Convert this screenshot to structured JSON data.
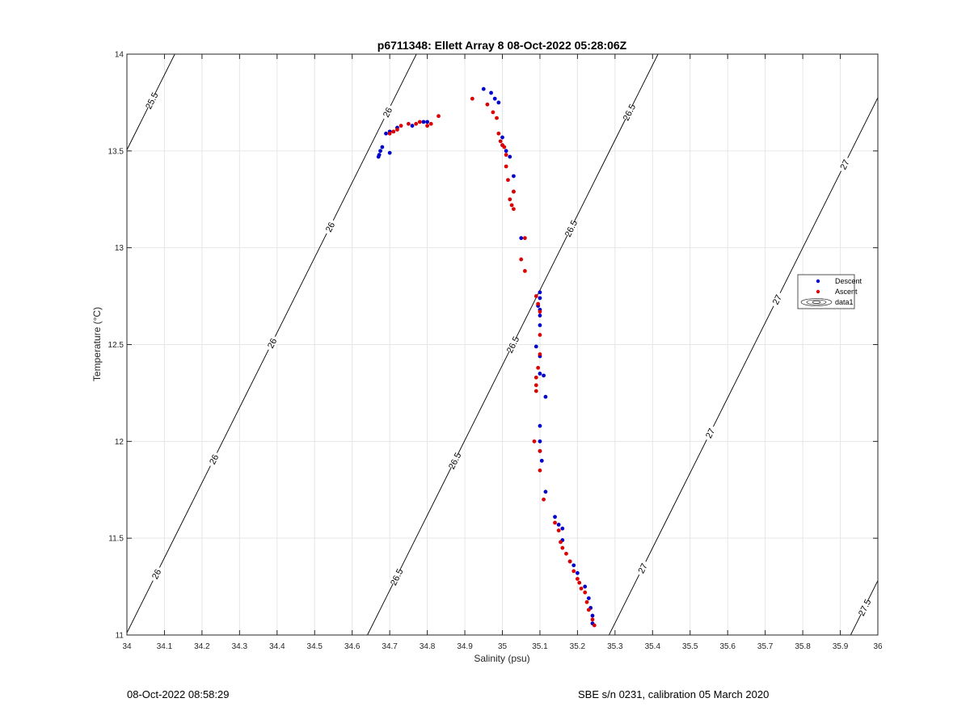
{
  "chart_data": {
    "type": "scatter",
    "title": "p6711348: Ellett Array 8 08-Oct-2022 05:28:06Z",
    "xlabel": "Salinity (psu)",
    "ylabel": "Temperature (°C)",
    "xlim": [
      34,
      36
    ],
    "ylim": [
      11,
      14
    ],
    "xticks": [
      "34",
      "34.1",
      "34.2",
      "34.3",
      "34.4",
      "34.5",
      "34.6",
      "34.7",
      "34.8",
      "34.9",
      "35",
      "35.1",
      "35.2",
      "35.3",
      "35.4",
      "35.5",
      "35.6",
      "35.7",
      "35.8",
      "35.9",
      "36"
    ],
    "yticks": [
      "11",
      "11.5",
      "12",
      "12.5",
      "13",
      "13.5",
      "14"
    ],
    "grid": true,
    "legend_position": "right",
    "legend": [
      "Descent",
      "Ascent",
      "data1"
    ],
    "colors": {
      "descent": "#0000cc",
      "ascent": "#dd0000",
      "axis": "#262626",
      "grid": "#e6e6e6",
      "contour": "#000000"
    },
    "series": [
      {
        "name": "Descent",
        "x": [
          34.67,
          34.672,
          34.675,
          34.68,
          34.69,
          34.7,
          34.7,
          34.72,
          34.76,
          34.79,
          34.8,
          34.95,
          34.97,
          34.98,
          34.99,
          35.0,
          35.0,
          35.01,
          35.02,
          35.03,
          35.03,
          35.05,
          35.1,
          35.1,
          35.095,
          35.1,
          35.1,
          35.1,
          35.09,
          35.1,
          35.1,
          35.11,
          35.115,
          35.1,
          35.1,
          35.1,
          35.105,
          35.115,
          35.14,
          35.15,
          35.16,
          35.16,
          35.18,
          35.19,
          35.2,
          35.22,
          35.23,
          35.235,
          35.24,
          35.24
        ],
        "y": [
          13.47,
          13.48,
          13.5,
          13.52,
          13.59,
          13.49,
          13.6,
          13.62,
          13.63,
          13.65,
          13.65,
          13.82,
          13.8,
          13.77,
          13.75,
          13.57,
          13.53,
          13.5,
          13.47,
          13.37,
          13.29,
          13.05,
          12.77,
          12.74,
          12.7,
          12.68,
          12.65,
          12.6,
          12.49,
          12.44,
          12.35,
          12.34,
          12.23,
          12.08,
          12.0,
          11.95,
          11.9,
          11.74,
          11.61,
          11.57,
          11.55,
          11.49,
          11.38,
          11.36,
          11.32,
          11.25,
          11.19,
          11.14,
          11.1,
          11.06
        ],
        "color": "#0000cc"
      },
      {
        "name": "Ascent",
        "x": [
          34.7,
          34.71,
          34.72,
          34.73,
          34.75,
          34.77,
          34.78,
          34.8,
          34.81,
          34.83,
          34.92,
          34.96,
          34.975,
          34.985,
          34.99,
          34.995,
          35.0,
          35.005,
          35.01,
          35.01,
          35.015,
          35.02,
          35.025,
          35.03,
          35.03,
          35.05,
          35.06,
          35.06,
          35.09,
          35.095,
          35.1,
          35.1,
          35.1,
          35.095,
          35.09,
          35.09,
          35.09,
          35.085,
          35.1,
          35.1,
          35.11,
          35.14,
          35.15,
          35.155,
          35.16,
          35.17,
          35.18,
          35.19,
          35.2,
          35.205,
          35.21,
          35.22,
          35.225,
          35.23,
          35.24,
          35.245
        ],
        "y": [
          13.59,
          13.6,
          13.61,
          13.63,
          13.64,
          13.64,
          13.65,
          13.63,
          13.64,
          13.68,
          13.77,
          13.74,
          13.7,
          13.67,
          13.59,
          13.55,
          13.53,
          13.52,
          13.48,
          13.42,
          13.35,
          13.25,
          13.22,
          13.2,
          13.29,
          12.94,
          13.05,
          12.88,
          12.75,
          12.71,
          12.67,
          12.55,
          12.45,
          12.38,
          12.33,
          12.29,
          12.26,
          12.0,
          11.95,
          11.85,
          11.7,
          11.58,
          11.54,
          11.48,
          11.45,
          11.42,
          11.38,
          11.33,
          11.29,
          11.27,
          11.24,
          11.22,
          11.17,
          11.13,
          11.08,
          11.05
        ],
        "color": "#dd0000"
      }
    ],
    "contours": [
      {
        "level": "25.5",
        "labels": 1
      },
      {
        "level": "26",
        "labels": 5
      },
      {
        "level": "26.5",
        "labels": 5
      },
      {
        "level": "27",
        "labels": 4
      },
      {
        "level": "27.5",
        "labels": 1
      }
    ]
  },
  "footer": {
    "timestamp": "08-Oct-2022 08:58:29",
    "sensor": "SBE s/n 0231, calibration 05 March 2020"
  }
}
